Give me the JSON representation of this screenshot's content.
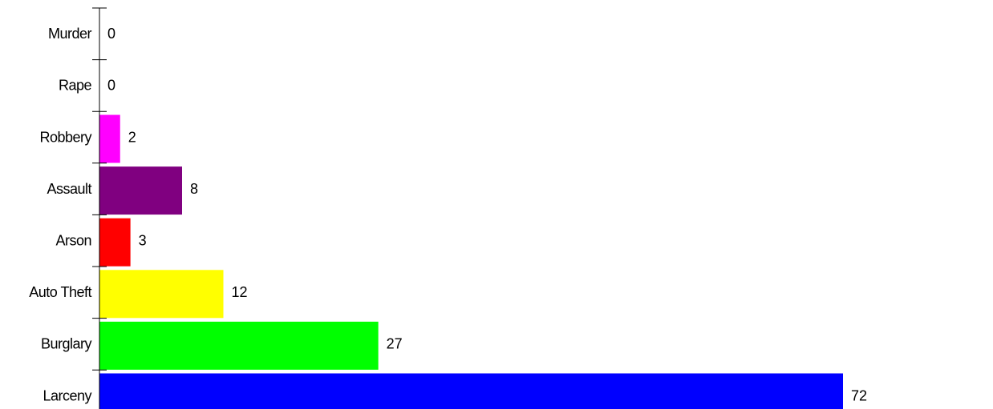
{
  "chart_data": {
    "type": "bar",
    "orientation": "horizontal",
    "categories": [
      "Murder",
      "Rape",
      "Robbery",
      "Assault",
      "Arson",
      "Auto Theft",
      "Burglary",
      "Larceny"
    ],
    "values": [
      0,
      0,
      2,
      8,
      3,
      12,
      27,
      72
    ],
    "colors": [
      "#000000",
      "#000000",
      "#ff00ff",
      "#800080",
      "#ff0000",
      "#ffff00",
      "#00ff00",
      "#0000ff"
    ],
    "title": "",
    "xlabel": "",
    "ylabel": "",
    "xlim": [
      0,
      72
    ],
    "grid": false,
    "legend": "none",
    "data_labels": true
  }
}
